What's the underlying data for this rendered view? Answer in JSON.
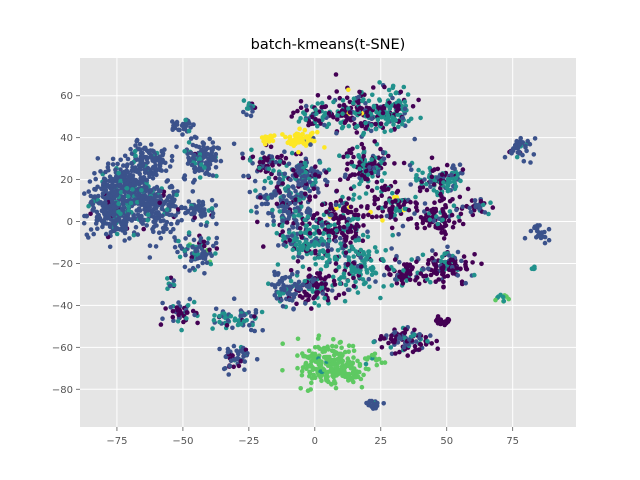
{
  "chart_data": {
    "type": "scatter",
    "title": "batch-kmeans(t-SNE)",
    "xlabel": "",
    "ylabel": "",
    "xlim": [
      -89,
      99
    ],
    "ylim": [
      -98,
      78
    ],
    "xticks": [
      -75,
      -50,
      -25,
      0,
      25,
      50,
      75
    ],
    "yticks": [
      -80,
      -60,
      -40,
      -20,
      0,
      20,
      40,
      60
    ],
    "grid": true,
    "legend": "none",
    "palette": [
      "#440154",
      "#3b528b",
      "#21918c",
      "#5ec962",
      "#fde725"
    ],
    "clusters": [
      {
        "cx": -70,
        "cy": 18,
        "sx": 6,
        "sy": 7,
        "n": 260,
        "mix": [
          0.02,
          0.9,
          0.08,
          0,
          0
        ]
      },
      {
        "cx": -76,
        "cy": 5,
        "sx": 5,
        "sy": 6,
        "n": 240,
        "mix": [
          0.02,
          0.9,
          0.08,
          0,
          0
        ]
      },
      {
        "cx": -60,
        "cy": 6,
        "sx": 5,
        "sy": 6,
        "n": 180,
        "mix": [
          0.02,
          0.88,
          0.1,
          0,
          0
        ]
      },
      {
        "cx": -63,
        "cy": 30,
        "sx": 4,
        "sy": 4,
        "n": 90,
        "mix": [
          0.02,
          0.9,
          0.08,
          0,
          0
        ]
      },
      {
        "cx": -43,
        "cy": 30,
        "sx": 4,
        "sy": 5,
        "n": 110,
        "mix": [
          0.02,
          0.85,
          0.13,
          0,
          0
        ]
      },
      {
        "cx": -50,
        "cy": 46,
        "sx": 2,
        "sy": 2,
        "n": 30,
        "mix": [
          0,
          0.9,
          0.1,
          0,
          0
        ]
      },
      {
        "cx": -42,
        "cy": 5,
        "sx": 3,
        "sy": 3,
        "n": 50,
        "mix": [
          0.05,
          0.85,
          0.1,
          0,
          0
        ]
      },
      {
        "cx": -45,
        "cy": -14,
        "sx": 4,
        "sy": 4,
        "n": 80,
        "mix": [
          0.05,
          0.6,
          0.3,
          0.05,
          0
        ]
      },
      {
        "cx": -10,
        "cy": 8,
        "sx": 6,
        "sy": 7,
        "n": 180,
        "mix": [
          0.15,
          0.6,
          0.25,
          0,
          0
        ]
      },
      {
        "cx": -3,
        "cy": 22,
        "sx": 5,
        "sy": 4,
        "n": 110,
        "mix": [
          0.2,
          0.55,
          0.25,
          0,
          0
        ]
      },
      {
        "cx": -18,
        "cy": 28,
        "sx": 4,
        "sy": 4,
        "n": 70,
        "mix": [
          0.5,
          0.3,
          0.2,
          0,
          0
        ]
      },
      {
        "cx": -5,
        "cy": 39,
        "sx": 3,
        "sy": 2,
        "n": 60,
        "mix": [
          0,
          0.05,
          0,
          0,
          0.95
        ]
      },
      {
        "cx": -18,
        "cy": 40,
        "sx": 2,
        "sy": 2,
        "n": 22,
        "mix": [
          0,
          0.1,
          0,
          0,
          0.9
        ]
      },
      {
        "cx": 10,
        "cy": 0,
        "sx": 5,
        "sy": 6,
        "n": 150,
        "mix": [
          0.6,
          0.1,
          0.28,
          0,
          0.02
        ]
      },
      {
        "cx": 20,
        "cy": 25,
        "sx": 5,
        "sy": 5,
        "n": 130,
        "mix": [
          0.55,
          0.1,
          0.35,
          0,
          0
        ]
      },
      {
        "cx": 15,
        "cy": 52,
        "sx": 6,
        "sy": 5,
        "n": 140,
        "mix": [
          0.55,
          0.1,
          0.33,
          0,
          0.02
        ]
      },
      {
        "cx": 30,
        "cy": 52,
        "sx": 5,
        "sy": 5,
        "n": 120,
        "mix": [
          0.2,
          0.05,
          0.75,
          0,
          0
        ]
      },
      {
        "cx": 30,
        "cy": 8,
        "sx": 4,
        "sy": 4,
        "n": 90,
        "mix": [
          0.7,
          0.05,
          0.2,
          0,
          0.05
        ]
      },
      {
        "cx": 0,
        "cy": 50,
        "sx": 4,
        "sy": 4,
        "n": 60,
        "mix": [
          0.6,
          0.1,
          0.3,
          0,
          0
        ]
      },
      {
        "cx": 15,
        "cy": -20,
        "sx": 7,
        "sy": 7,
        "n": 160,
        "mix": [
          0.15,
          0.15,
          0.7,
          0,
          0
        ]
      },
      {
        "cx": -3,
        "cy": -10,
        "sx": 5,
        "sy": 5,
        "n": 120,
        "mix": [
          0.2,
          0.2,
          0.6,
          0,
          0
        ]
      },
      {
        "cx": 0,
        "cy": -32,
        "sx": 4,
        "sy": 4,
        "n": 80,
        "mix": [
          0.6,
          0.1,
          0.3,
          0,
          0
        ]
      },
      {
        "cx": -10,
        "cy": -32,
        "sx": 4,
        "sy": 4,
        "n": 80,
        "mix": [
          0.05,
          0.8,
          0.15,
          0,
          0
        ]
      },
      {
        "cx": 48,
        "cy": 20,
        "sx": 5,
        "sy": 4,
        "n": 110,
        "mix": [
          0.3,
          0.3,
          0.4,
          0,
          0
        ]
      },
      {
        "cx": 47,
        "cy": 2,
        "sx": 4,
        "sy": 4,
        "n": 80,
        "mix": [
          0.85,
          0.05,
          0.1,
          0,
          0
        ]
      },
      {
        "cx": 50,
        "cy": -22,
        "sx": 5,
        "sy": 4,
        "n": 110,
        "mix": [
          0.6,
          0.2,
          0.2,
          0,
          0
        ]
      },
      {
        "cx": 35,
        "cy": -25,
        "sx": 4,
        "sy": 3,
        "n": 70,
        "mix": [
          0.7,
          0.1,
          0.2,
          0,
          0
        ]
      },
      {
        "cx": 35,
        "cy": -57,
        "sx": 5,
        "sy": 3,
        "n": 90,
        "mix": [
          0.5,
          0.3,
          0.2,
          0,
          0
        ]
      },
      {
        "cx": 48,
        "cy": -48,
        "sx": 2,
        "sy": 1,
        "n": 20,
        "mix": [
          1,
          0,
          0,
          0,
          0
        ]
      },
      {
        "cx": 5,
        "cy": -68,
        "sx": 6,
        "sy": 5,
        "n": 200,
        "mix": [
          0,
          0,
          0.02,
          0.98,
          0
        ]
      },
      {
        "cx": 13,
        "cy": -72,
        "sx": 3,
        "sy": 2,
        "n": 40,
        "mix": [
          0,
          0,
          0,
          1,
          0
        ]
      },
      {
        "cx": -30,
        "cy": -65,
        "sx": 3,
        "sy": 3,
        "n": 50,
        "mix": [
          0.3,
          0.6,
          0.1,
          0,
          0
        ]
      },
      {
        "cx": -30,
        "cy": -46,
        "sx": 4,
        "sy": 3,
        "n": 60,
        "mix": [
          0.1,
          0.5,
          0.4,
          0,
          0
        ]
      },
      {
        "cx": -50,
        "cy": -43,
        "sx": 3,
        "sy": 3,
        "n": 50,
        "mix": [
          0.5,
          0.3,
          0.2,
          0,
          0
        ]
      },
      {
        "cx": 23,
        "cy": -87,
        "sx": 1.5,
        "sy": 1,
        "n": 20,
        "mix": [
          0,
          0.9,
          0.1,
          0,
          0
        ]
      },
      {
        "cx": 77,
        "cy": 35,
        "sx": 2.5,
        "sy": 2.5,
        "n": 40,
        "mix": [
          0.05,
          0.85,
          0.1,
          0,
          0
        ]
      },
      {
        "cx": 85,
        "cy": -5,
        "sx": 2,
        "sy": 2,
        "n": 25,
        "mix": [
          0,
          0.9,
          0.1,
          0,
          0
        ]
      },
      {
        "cx": 71,
        "cy": -37,
        "sx": 1.5,
        "sy": 1,
        "n": 12,
        "mix": [
          0,
          0,
          0.3,
          0.7,
          0
        ]
      },
      {
        "cx": 83,
        "cy": -22,
        "sx": 0.5,
        "sy": 0.5,
        "n": 5,
        "mix": [
          0,
          0,
          1,
          0,
          0
        ]
      },
      {
        "cx": 60,
        "cy": 8,
        "sx": 3,
        "sy": 3,
        "n": 30,
        "mix": [
          0.3,
          0.4,
          0.3,
          0,
          0
        ]
      },
      {
        "cx": 22,
        "cy": -66,
        "sx": 2,
        "sy": 1.5,
        "n": 15,
        "mix": [
          0,
          0,
          0.1,
          0.9,
          0
        ]
      },
      {
        "cx": -25,
        "cy": 55,
        "sx": 2,
        "sy": 1.5,
        "n": 15,
        "mix": [
          0.1,
          0.5,
          0.4,
          0,
          0
        ]
      },
      {
        "cx": -55,
        "cy": -30,
        "sx": 1.5,
        "sy": 1.5,
        "n": 10,
        "mix": [
          0.2,
          0.3,
          0.5,
          0,
          0
        ]
      }
    ]
  }
}
